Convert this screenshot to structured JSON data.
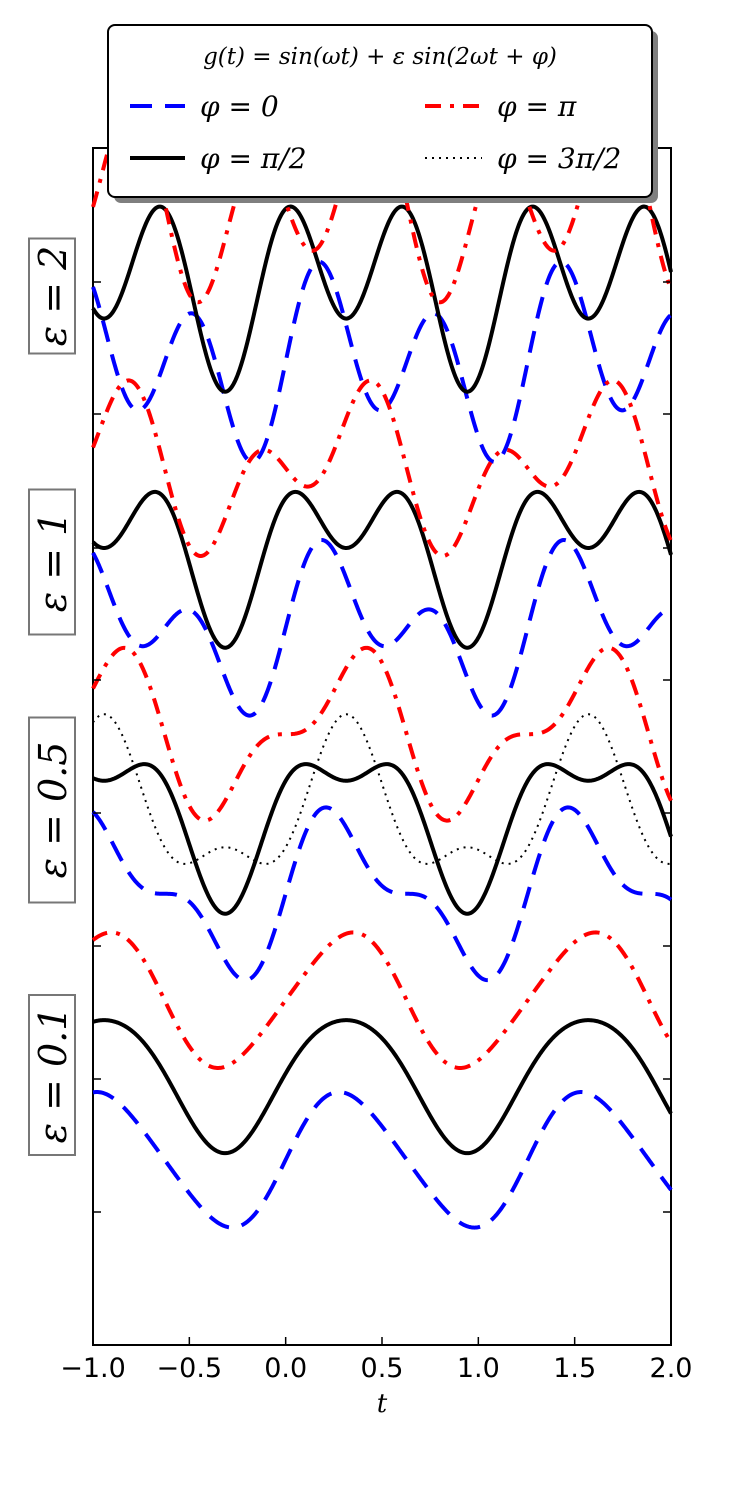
{
  "chart_data": {
    "type": "line",
    "title": "g(t) = sin(ωt) + ε sin(2ωt + φ)",
    "xlabel": "t",
    "ylabel": "",
    "xlim": [
      -1.0,
      2.0
    ],
    "xticks": [
      "−1.0",
      "−0.5",
      "0.0",
      "0.5",
      "1.0",
      "1.5",
      "2.0"
    ],
    "omega": 5.0,
    "x_step": 0.005,
    "grid": false,
    "legend_position": "top",
    "panels": [
      {
        "label": "ε = 2",
        "epsilon": 2.0,
        "offset": 0,
        "phases": [
          "0",
          "π/2",
          "π"
        ]
      },
      {
        "label": "ε = 1",
        "epsilon": 1.0,
        "offset": -4,
        "phases": [
          "0",
          "π/2",
          "π"
        ]
      },
      {
        "label": "ε = 0.5",
        "epsilon": 0.5,
        "offset": -8,
        "phases": [
          "0",
          "π/2",
          "π",
          "3π/2"
        ]
      },
      {
        "label": "ε = 0.1",
        "epsilon": 0.1,
        "offset": -12,
        "phases": [
          "0",
          "π/2",
          "π"
        ]
      }
    ],
    "series": [
      {
        "name": "φ = 0",
        "phi": "0",
        "phase_value": 0.0,
        "color": "#0000ff",
        "style": "dashed",
        "shift": -2.0
      },
      {
        "name": "φ = π/2",
        "phi": "π/2",
        "phase_value": 1.5707963,
        "color": "#000000",
        "style": "solid",
        "shift": 0.0
      },
      {
        "name": "φ = π",
        "phi": "π",
        "phase_value": 3.1415927,
        "color": "#ff0000",
        "style": "dashdot",
        "shift": 2.0
      },
      {
        "name": "φ = 3π/2",
        "phi": "3π/2",
        "phase_value": 4.712389,
        "color": "#000000",
        "style": "dotted",
        "shift": 0.0
      }
    ]
  }
}
